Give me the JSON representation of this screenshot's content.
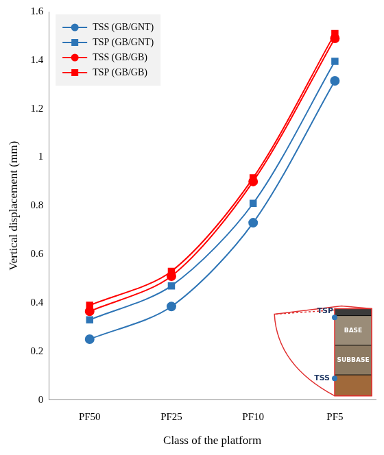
{
  "chart_data": {
    "type": "line",
    "x_label": "Class of the platform",
    "y_label": "Vertical displacement (mm)",
    "categories": [
      "PF50",
      "PF25",
      "PF10",
      "PF5"
    ],
    "series": [
      {
        "name": "TSS (GB/GNT)",
        "color": "#2E75B6",
        "marker": "circle",
        "values": [
          0.25,
          0.385,
          0.73,
          1.315
        ]
      },
      {
        "name": "TSP (GB/GNT)",
        "color": "#2E75B6",
        "marker": "square",
        "values": [
          0.33,
          0.47,
          0.81,
          1.395
        ]
      },
      {
        "name": "TSS (GB/GB)",
        "color": "#FF0000",
        "marker": "circle",
        "values": [
          0.365,
          0.51,
          0.9,
          1.49
        ]
      },
      {
        "name": "TSP (GB/GB)",
        "color": "#FF0000",
        "marker": "square",
        "values": [
          0.39,
          0.53,
          0.915,
          1.51
        ]
      }
    ],
    "ylim": [
      0,
      1.6
    ],
    "yticks": [
      0,
      0.2,
      0.4,
      0.6,
      0.8,
      1,
      1.2,
      1.4,
      1.6
    ],
    "grid": false,
    "legend": "upper left",
    "annotations": [
      "TSP",
      "BASE",
      "SUBBASE",
      "TSS"
    ]
  }
}
